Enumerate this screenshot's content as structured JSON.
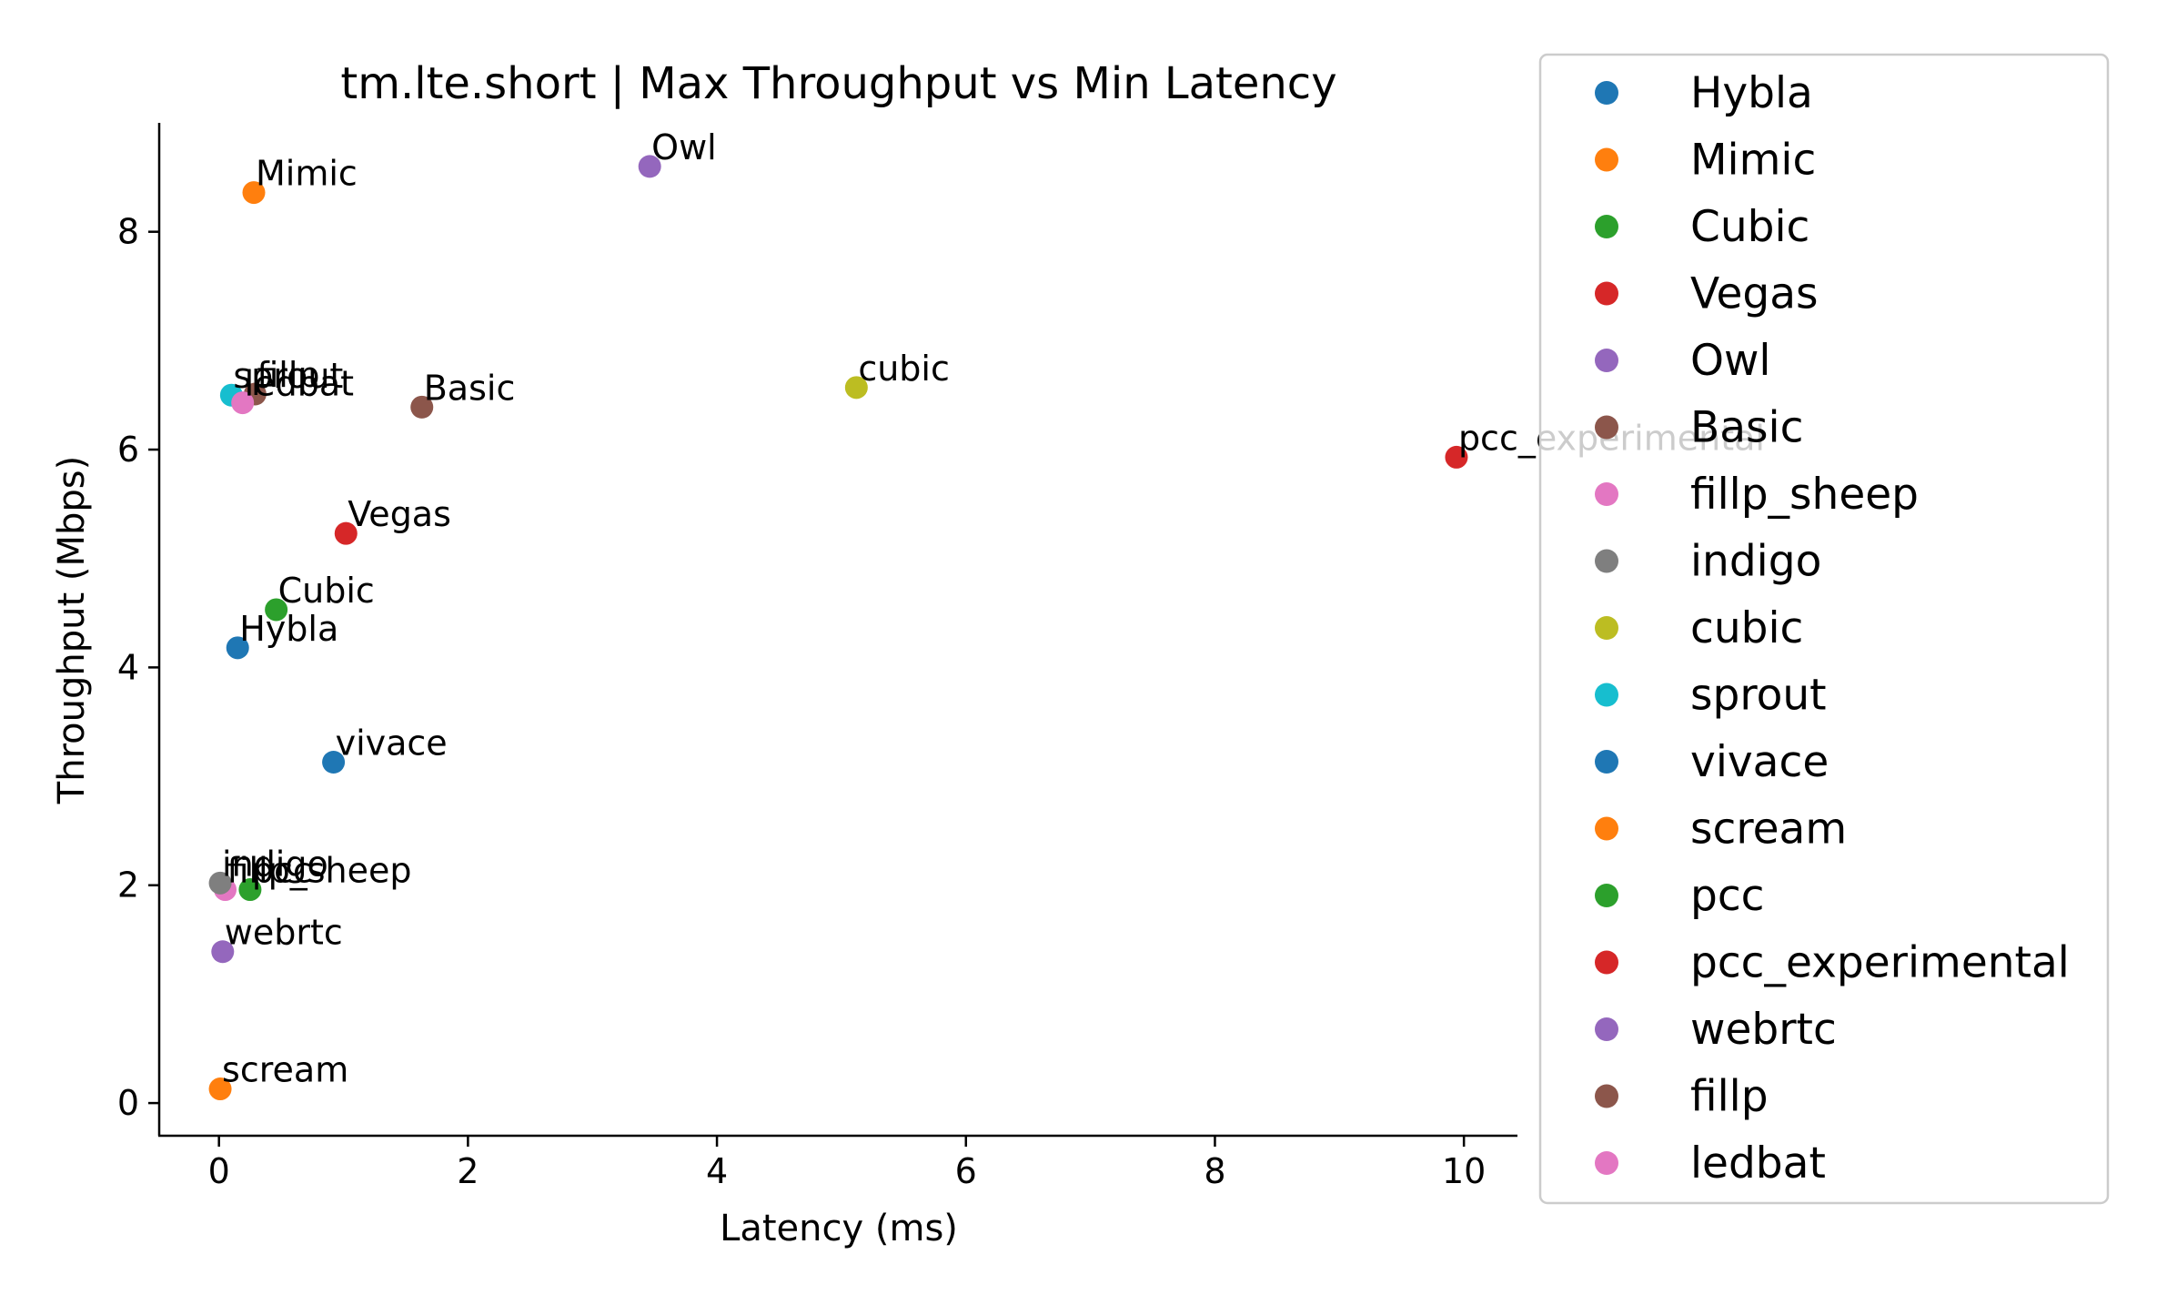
{
  "chart_data": {
    "type": "scatter",
    "title": "tm.lte.short | Max Throughput vs Min Latency",
    "xlabel": "Latency (ms)",
    "ylabel": "Throughput (Mbps)",
    "xlim": [
      -0.48,
      10.43
    ],
    "ylim": [
      -0.3,
      9.0
    ],
    "xticks": [
      0,
      2,
      4,
      6,
      8,
      10
    ],
    "yticks": [
      0,
      2,
      4,
      6,
      8
    ],
    "grid": false,
    "legend_position": "right",
    "series": [
      {
        "name": "Hybla",
        "x": 0.15,
        "y": 4.18,
        "color": "#1f77b4"
      },
      {
        "name": "Mimic",
        "x": 0.28,
        "y": 8.36,
        "color": "#ff7f0e"
      },
      {
        "name": "Cubic",
        "x": 0.46,
        "y": 4.53,
        "color": "#2ca02c"
      },
      {
        "name": "Vegas",
        "x": 1.02,
        "y": 5.23,
        "color": "#d62728"
      },
      {
        "name": "Owl",
        "x": 3.46,
        "y": 8.6,
        "color": "#9467bd"
      },
      {
        "name": "Basic",
        "x": 1.63,
        "y": 6.39,
        "color": "#8c564b"
      },
      {
        "name": "fillp_sheep",
        "x": 0.05,
        "y": 1.96,
        "color": "#e377c2"
      },
      {
        "name": "indigo",
        "x": 0.01,
        "y": 2.02,
        "color": "#7f7f7f"
      },
      {
        "name": "cubic",
        "x": 5.12,
        "y": 6.57,
        "color": "#bcbd22"
      },
      {
        "name": "sprout",
        "x": 0.1,
        "y": 6.5,
        "color": "#17becf"
      },
      {
        "name": "vivace",
        "x": 0.92,
        "y": 3.13,
        "color": "#1f77b4"
      },
      {
        "name": "scream",
        "x": 0.01,
        "y": 0.13,
        "color": "#ff7f0e"
      },
      {
        "name": "pcc",
        "x": 0.25,
        "y": 1.96,
        "color": "#2ca02c"
      },
      {
        "name": "pcc_experimental",
        "x": 9.94,
        "y": 5.93,
        "color": "#d62728"
      },
      {
        "name": "webrtc",
        "x": 0.03,
        "y": 1.39,
        "color": "#9467bd"
      },
      {
        "name": "fillp",
        "x": 0.29,
        "y": 6.51,
        "color": "#8c564b"
      },
      {
        "name": "ledbat",
        "x": 0.19,
        "y": 6.43,
        "color": "#e377c2"
      }
    ]
  }
}
